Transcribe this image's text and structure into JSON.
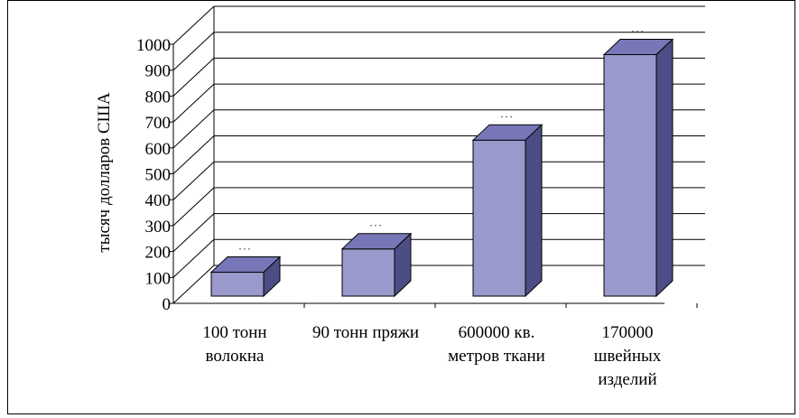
{
  "chart_data": {
    "type": "bar",
    "title": "",
    "ylabel": "тысяч долларов США",
    "xlabel": "",
    "ylim": [
      0,
      1000
    ],
    "ytick_step": 100,
    "grid": true,
    "legend": "none",
    "bar_style": "3d",
    "categories": [
      [
        "100 тонн",
        "волокна"
      ],
      [
        "90 тонн пряжи"
      ],
      [
        "600000 кв.",
        "метров ткани"
      ],
      [
        "170000",
        "швейных",
        "изделий"
      ]
    ],
    "values": [
      120,
      210,
      630,
      960
    ],
    "data_labels": [
      "...",
      "...",
      "...",
      "..."
    ],
    "colors": {
      "bar_front": "#9999cc",
      "bar_top": "#7777b8",
      "bar_side": "#4d4d85",
      "grid": "#000000"
    }
  }
}
